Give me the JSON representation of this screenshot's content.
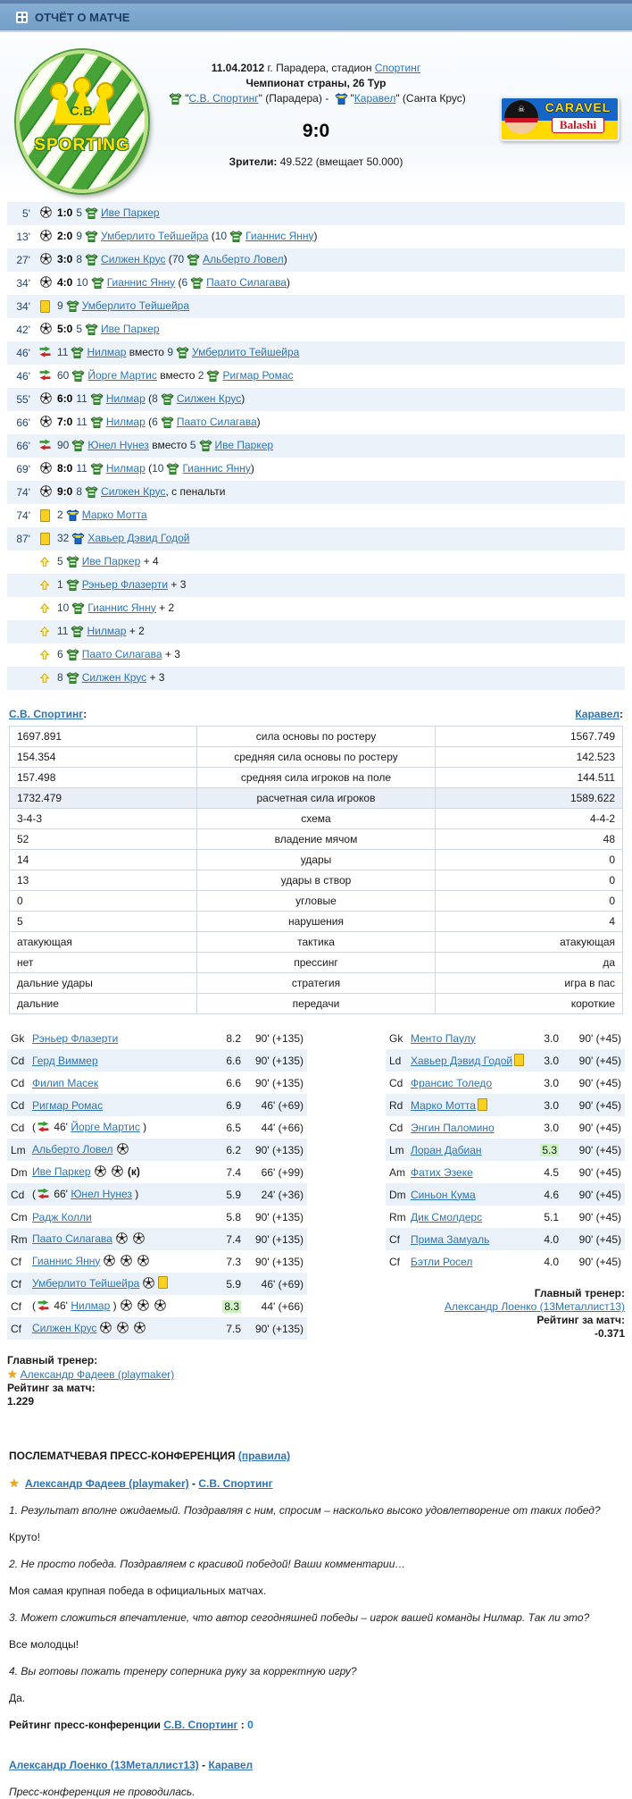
{
  "topbar": {
    "title": "ОТЧЁТ О МАТЧЕ",
    "icon": "report-icon"
  },
  "match": {
    "date": "11.04.2012",
    "venue": " г. Парадера, стадион ",
    "stadium": "Спортинг",
    "competition": "Чемпионат страны, 26 Тур",
    "q": "\"",
    "home_name": "С.В. Спортинг",
    "home_city": " (Парадера)",
    "dash": " - ",
    "away_name": "Каравел",
    "away_city": " (Санта Крус)",
    "score": "9:0",
    "att_label": "Зрители:",
    "att_value": " 49.522 (вмещает 50.000)"
  },
  "logos": {
    "home_initials": "C.B",
    "home_text": "SPORTING",
    "away_line1": "CARAVEL",
    "away_line2": "Balashi",
    "pirate_glyph": "☠"
  },
  "events": [
    {
      "min": "5'",
      "type": "goal",
      "score": "1:0",
      "num": "5",
      "team": "home",
      "player": "Иве Паркер"
    },
    {
      "min": "13'",
      "type": "goal",
      "score": "2:0",
      "num": "9",
      "team": "home",
      "player": "Умберлито Тейшейра",
      "assist_num": "10",
      "assist": "Гианнис Янну"
    },
    {
      "min": "27'",
      "type": "goal",
      "score": "3:0",
      "num": "8",
      "team": "home",
      "player": "Силжен Крус",
      "assist_num": "70",
      "assist": "Альберто Ловел"
    },
    {
      "min": "34'",
      "type": "goal",
      "score": "4:0",
      "num": "10",
      "team": "home",
      "player": "Гианнис Янну",
      "assist_num": "6",
      "assist": "Паато Силагава"
    },
    {
      "min": "34'",
      "type": "yellow",
      "num": "9",
      "team": "home",
      "player": "Умберлито Тейшейра"
    },
    {
      "min": "42'",
      "type": "goal",
      "score": "5:0",
      "num": "5",
      "team": "home",
      "player": "Иве Паркер"
    },
    {
      "min": "46'",
      "type": "sub",
      "num": "11",
      "team": "home",
      "player": "Нилмар",
      "out_num": "9",
      "out": "Умберлито Тейшейра"
    },
    {
      "min": "46'",
      "type": "sub",
      "num": "60",
      "team": "home",
      "player": "Йорге Мартис",
      "out_num": "2",
      "out": "Ригмар Ромас"
    },
    {
      "min": "55'",
      "type": "goal",
      "score": "6:0",
      "num": "11",
      "team": "home",
      "player": "Нилмар",
      "assist_num": "8",
      "assist": "Силжен Крус"
    },
    {
      "min": "66'",
      "type": "goal",
      "score": "7:0",
      "num": "11",
      "team": "home",
      "player": "Нилмар",
      "assist_num": "6",
      "assist": "Паато Силагава"
    },
    {
      "min": "66'",
      "type": "sub",
      "num": "90",
      "team": "home",
      "player": "Юнел Нунез",
      "out_num": "5",
      "out": "Иве Паркер"
    },
    {
      "min": "69'",
      "type": "goal",
      "score": "8:0",
      "num": "11",
      "team": "home",
      "player": "Нилмар",
      "assist_num": "10",
      "assist": "Гианнис Янну"
    },
    {
      "min": "74'",
      "type": "goal",
      "score": "9:0",
      "num": "8",
      "team": "home",
      "player": "Силжен Крус",
      "suffix": ", с пенальти"
    },
    {
      "min": "74'",
      "type": "yellow",
      "num": "2",
      "team": "away",
      "player": "Марко Мотта"
    },
    {
      "min": "87'",
      "type": "yellow",
      "num": "32",
      "team": "away",
      "player": "Хавьер Дэвид Годой"
    },
    {
      "type": "exp",
      "num": "5",
      "team": "home",
      "player": "Иве Паркер",
      "bonus": "+ 4"
    },
    {
      "type": "exp",
      "num": "1",
      "team": "home",
      "player": "Рэньер Флазерти",
      "bonus": "+ 3"
    },
    {
      "type": "exp",
      "num": "10",
      "team": "home",
      "player": "Гианнис Янну",
      "bonus": "+ 2"
    },
    {
      "type": "exp",
      "num": "11",
      "team": "home",
      "player": "Нилмар",
      "bonus": "+ 2"
    },
    {
      "type": "exp",
      "num": "6",
      "team": "home",
      "player": "Паато Силагава",
      "bonus": "+ 3"
    },
    {
      "type": "exp",
      "num": "8",
      "team": "home",
      "player": "Силжен Крус",
      "bonus": "+ 3"
    }
  ],
  "words": {
    "sub_word": "вместо",
    "captain_mark": "(к)",
    "colon": ":"
  },
  "teamsrow": {
    "home": "С.В. Спортинг",
    "away": "Каравел"
  },
  "stats": [
    {
      "home": "1697.891",
      "label": "сила основы по ростеру",
      "away": "1567.749"
    },
    {
      "home": "154.354",
      "label": "средняя сила основы по ростеру",
      "away": "142.523"
    },
    {
      "home": "157.498",
      "label": "средняя сила игроков на поле",
      "away": "144.511"
    },
    {
      "home": "1732.479",
      "label": "расчетная сила игроков",
      "away": "1589.622",
      "hl": true
    },
    {
      "home": "3-4-3",
      "label": "схема",
      "away": "4-4-2"
    },
    {
      "home": "52",
      "label": "владение мячом",
      "away": "48"
    },
    {
      "home": "14",
      "label": "удары",
      "away": "0"
    },
    {
      "home": "13",
      "label": "удары в створ",
      "away": "0"
    },
    {
      "home": "0",
      "label": "угловые",
      "away": "0"
    },
    {
      "home": "5",
      "label": "нарушения",
      "away": "4"
    },
    {
      "home": "атакующая",
      "label": "тактика",
      "away": "атакующая"
    },
    {
      "home": "нет",
      "label": "прессинг",
      "away": "да"
    },
    {
      "home": "дальние удары",
      "label": "стратегия",
      "away": "игра в пас"
    },
    {
      "home": "дальние",
      "label": "передачи",
      "away": "короткие"
    }
  ],
  "lineups": {
    "home": {
      "players": [
        {
          "pos": "Gk",
          "name": "Рэньер Флазерти",
          "rating": "8.2",
          "min": "90' (+135)"
        },
        {
          "pos": "Cd",
          "name": "Герд Виммер",
          "rating": "6.6",
          "min": "90' (+135)"
        },
        {
          "pos": "Cd",
          "name": "Филип Масек",
          "rating": "6.6",
          "min": "90' (+135)"
        },
        {
          "pos": "Cd",
          "name": "Ригмар Ромас",
          "rating": "6.9",
          "min": "46' (+69)"
        },
        {
          "pos": "Cd",
          "sub_in": "46'",
          "name": "Йорге Мартис",
          "rating": "6.5",
          "min": "44' (+66)"
        },
        {
          "pos": "Lm",
          "name": "Альберто Ловел",
          "balls": 1,
          "rating": "6.2",
          "min": "90' (+135)"
        },
        {
          "pos": "Dm",
          "name": "Иве Паркер",
          "balls": 2,
          "captain": true,
          "rating": "7.4",
          "min": "66' (+99)"
        },
        {
          "pos": "Cd",
          "sub_in": "66'",
          "name": "Юнел Нунез",
          "rating": "5.9",
          "min": "24' (+36)"
        },
        {
          "pos": "Cm",
          "name": "Радж Колли",
          "rating": "5.8",
          "min": "90' (+135)"
        },
        {
          "pos": "Rm",
          "name": "Паато Силагава",
          "balls": 2,
          "rating": "7.4",
          "min": "90' (+135)"
        },
        {
          "pos": "Cf",
          "name": "Гианнис Янну",
          "balls": 3,
          "rating": "7.3",
          "min": "90' (+135)"
        },
        {
          "pos": "Cf",
          "name": "Умберлито Тейшейра",
          "balls": 1,
          "yellow": true,
          "rating": "5.9",
          "min": "46' (+69)"
        },
        {
          "pos": "Cf",
          "sub_in": "46'",
          "name": "Нилмар",
          "balls": 3,
          "rating": "8.3",
          "best": true,
          "min": "44' (+66)"
        },
        {
          "pos": "Cf",
          "name": "Силжен Крус",
          "balls": 3,
          "rating": "7.5",
          "min": "90' (+135)"
        }
      ],
      "coach_label": "Главный тренер:",
      "coach": "Александр Фадеев (playmaker)",
      "coach_star": true,
      "rating_label": "Рейтинг за матч:",
      "rating": "1.229"
    },
    "away": {
      "players": [
        {
          "pos": "Gk",
          "name": "Менто Паулу",
          "rating": "3.0",
          "min": "90' (+45)"
        },
        {
          "pos": "Ld",
          "name": "Хавьер Дэвид Годой",
          "yellow": true,
          "rating": "3.0",
          "min": "90' (+45)"
        },
        {
          "pos": "Cd",
          "name": "Франсис Толедо",
          "rating": "3.0",
          "min": "90' (+45)"
        },
        {
          "pos": "Rd",
          "name": "Марко Мотта",
          "yellow": true,
          "rating": "3.0",
          "min": "90' (+45)"
        },
        {
          "pos": "Cd",
          "name": "Энгин Паломино",
          "rating": "3.0",
          "min": "90' (+45)"
        },
        {
          "pos": "Lm",
          "name": "Лоран Дабиан",
          "rating": "5.3",
          "best": true,
          "min": "90' (+45)"
        },
        {
          "pos": "Am",
          "name": "Фатих Эзеке",
          "rating": "4.5",
          "min": "90' (+45)"
        },
        {
          "pos": "Dm",
          "name": "Синьон Кума",
          "rating": "4.6",
          "min": "90' (+45)"
        },
        {
          "pos": "Rm",
          "name": "Дик Смолдерс",
          "rating": "5.1",
          "min": "90' (+45)"
        },
        {
          "pos": "Cf",
          "name": "Прима Замуаль",
          "rating": "4.0",
          "min": "90' (+45)"
        },
        {
          "pos": "Cf",
          "name": "Бэтли Росел",
          "rating": "4.0",
          "min": "90' (+45)"
        }
      ],
      "coach_label": "Главный тренер:",
      "coach": "Александр Лоенко (13Металлист13)",
      "rating_label": "Рейтинг за матч:",
      "rating": "-0.371"
    }
  },
  "press": {
    "title": "ПОСЛЕМАТЧЕВАЯ ПРЕСС-КОНФЕРЕНЦИЯ",
    "rules": "(правила)",
    "home_coach": "Александр Фадеев (playmaker)",
    "home_team": "С.В. Спортинг",
    "qa": [
      {
        "q": "1. Результат вполне ожидаемый. Поздравляя с ним, спросим – насколько высоко удовлетворение от таких побед?",
        "a": "Круто!"
      },
      {
        "q": "2. Не просто победа. Поздравляем с красивой победой! Ваши комментарии…",
        "a": "Моя самая крупная победа в официальных матчах."
      },
      {
        "q": "3. Может сложиться впечатление, что автор сегодняшней победы – игрок вашей команды Нилмар. Так ли это?",
        "a": "Все молодцы!"
      },
      {
        "q": "4. Вы готовы пожать тренеру соперника руку за корректную игру?",
        "a": "Да."
      }
    ],
    "rating_label": "Рейтинг пресс-конференции",
    "rating_team": "С.В. Спортинг",
    "rating_value": "0",
    "away_coach": "Александр Лоенко (13Металлист13)",
    "away_team": "Каравел",
    "away_note": "Пресс-конференция не проводилась."
  },
  "colors": {
    "bar": "#739ec7",
    "link": "#2e74b5",
    "row_alt": "#ecf2f9",
    "best_highlight": "#cdf3c0",
    "yellow_card": "#f8d022",
    "home_shirt": "#2f8c2a",
    "away_shirt": "#1666c8"
  }
}
